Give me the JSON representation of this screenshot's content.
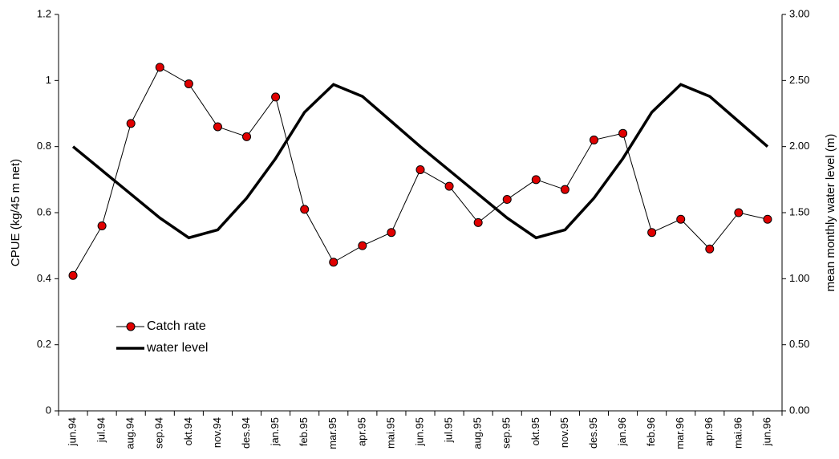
{
  "chart_data": {
    "type": "line",
    "y_label": "CPUE (kg/45 m net)",
    "y2_label": "mean monthly water level (m)",
    "categories": [
      "jun.94",
      "jul.94",
      "aug.94",
      "sep.94",
      "okt.94",
      "nov.94",
      "des.94",
      "jan.95",
      "feb.95",
      "mar.95",
      "apr.95",
      "mai.95",
      "jun.95",
      "jul.95",
      "aug.95",
      "sep.95",
      "okt.95",
      "nov.95",
      "des.95",
      "jan.96",
      "feb.96",
      "mar.96",
      "apr.96",
      "mai.96",
      "jun.96"
    ],
    "series": [
      {
        "name": "Catch rate",
        "color": "#e00000",
        "axis": "y",
        "values": [
          0.41,
          0.56,
          0.87,
          1.04,
          0.99,
          0.86,
          0.83,
          0.95,
          0.61,
          0.45,
          0.5,
          0.54,
          0.73,
          0.68,
          0.57,
          0.64,
          0.7,
          0.67,
          0.82,
          0.84,
          0.54,
          0.58,
          0.49,
          0.6,
          0.58
        ]
      },
      {
        "name": "water level",
        "color": "#000000",
        "axis": "y2",
        "values": [
          2.0,
          1.82,
          1.64,
          1.46,
          1.31,
          1.37,
          1.61,
          1.91,
          2.26,
          2.47,
          2.38,
          2.19,
          2.0,
          1.82,
          1.64,
          1.46,
          1.31,
          1.37,
          1.61,
          1.91,
          2.26,
          2.47,
          2.38,
          2.19,
          2.0
        ]
      }
    ],
    "ylim": [
      0,
      1.2
    ],
    "yticks": [
      0,
      0.2,
      0.4,
      0.6,
      0.8,
      1,
      1.2
    ],
    "y2lim": [
      0,
      3
    ],
    "y2ticks": [
      {
        "value": 0,
        "label": "0.00"
      },
      {
        "value": 0.5,
        "label": "0.50"
      },
      {
        "value": 1,
        "label": "1.00"
      },
      {
        "value": 1.5,
        "label": "1.50"
      },
      {
        "value": 2,
        "label": "2.00"
      },
      {
        "value": 2.5,
        "label": "2.50"
      },
      {
        "value": 3,
        "label": "3.00"
      }
    ],
    "grid": false
  }
}
